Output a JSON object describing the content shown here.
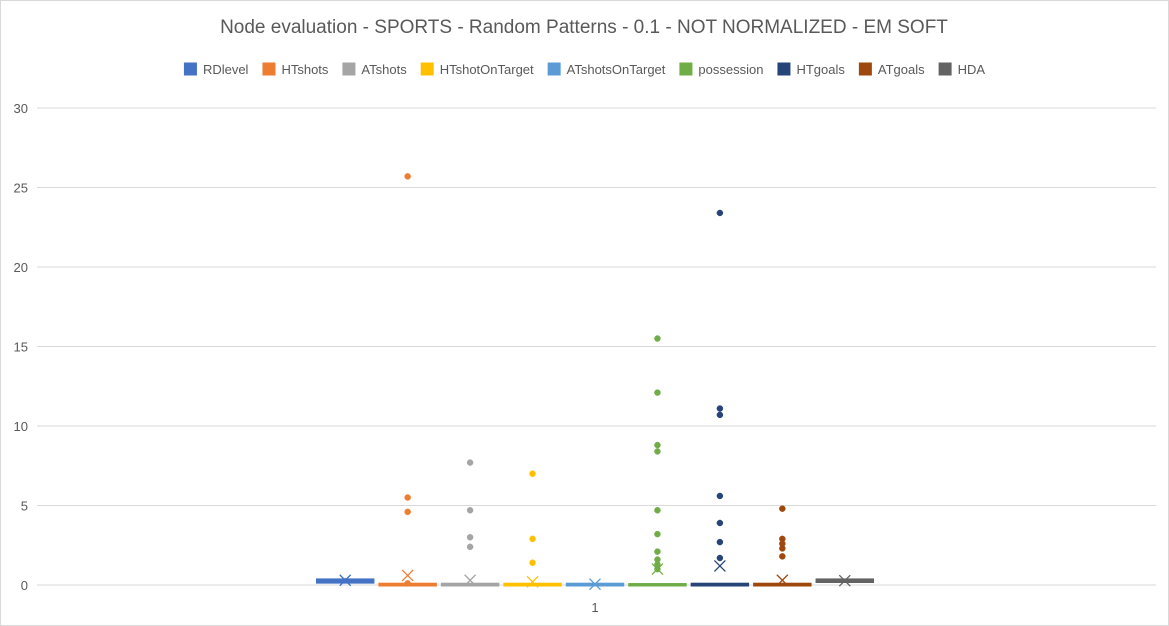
{
  "chart_data": {
    "type": "box",
    "title": "Node evaluation - SPORTS - Random Patterns - 0.1 - NOT NORMALIZED - EM SOFT",
    "xlabel": "",
    "ylabel": "",
    "categories": [
      "1"
    ],
    "ylim": [
      0,
      30
    ],
    "yticks": [
      0,
      5,
      10,
      15,
      20,
      25,
      30
    ],
    "grid": true,
    "legend_position": "top",
    "series": [
      {
        "name": "RDlevel",
        "color": "#4472C4",
        "q1": 0.18,
        "median": 0.25,
        "q3": 0.32,
        "whisker_low": 0.1,
        "whisker_high": 0.45,
        "mean": 0.3,
        "outliers": []
      },
      {
        "name": "HTshots",
        "color": "#ED7D31",
        "q1": 0.0,
        "median": 0.02,
        "q3": 0.05,
        "whisker_low": 0.0,
        "whisker_high": 0.1,
        "mean": 0.6,
        "outliers": [
          25.7,
          5.5,
          4.6,
          0.1
        ]
      },
      {
        "name": "ATshots",
        "color": "#A5A5A5",
        "q1": 0.0,
        "median": 0.02,
        "q3": 0.05,
        "whisker_low": 0.0,
        "whisker_high": 0.1,
        "mean": 0.3,
        "outliers": [
          7.7,
          4.7,
          3.0,
          2.4
        ]
      },
      {
        "name": "HTshotOnTarget",
        "color": "#FFC000",
        "q1": 0.0,
        "median": 0.02,
        "q3": 0.05,
        "whisker_low": 0.0,
        "whisker_high": 0.1,
        "mean": 0.2,
        "outliers": [
          7.0,
          2.9,
          1.4
        ]
      },
      {
        "name": "ATshotsOnTarget",
        "color": "#5B9BD5",
        "q1": 0.0,
        "median": 0.02,
        "q3": 0.05,
        "whisker_low": 0.0,
        "whisker_high": 0.1,
        "mean": 0.05,
        "outliers": []
      },
      {
        "name": "possession",
        "color": "#70AD47",
        "q1": 0.0,
        "median": 0.01,
        "q3": 0.03,
        "whisker_low": 0.0,
        "whisker_high": 0.05,
        "mean": 1.0,
        "outliers": [
          15.5,
          12.1,
          8.8,
          8.4,
          4.7,
          3.2,
          2.1,
          1.6,
          1.0,
          1.3
        ]
      },
      {
        "name": "HTgoals",
        "color": "#264478",
        "q1": 0.0,
        "median": 0.02,
        "q3": 0.05,
        "whisker_low": 0.0,
        "whisker_high": 0.1,
        "mean": 1.2,
        "outliers": [
          23.4,
          11.1,
          10.7,
          5.6,
          3.9,
          2.7,
          1.7
        ]
      },
      {
        "name": "ATgoals",
        "color": "#9E480E",
        "q1": 0.0,
        "median": 0.02,
        "q3": 0.05,
        "whisker_low": 0.0,
        "whisker_high": 0.1,
        "mean": 0.3,
        "outliers": [
          4.8,
          2.9,
          2.6,
          2.3,
          1.8
        ]
      },
      {
        "name": "HDA",
        "color": "#636363",
        "q1": 0.22,
        "median": 0.27,
        "q3": 0.32,
        "whisker_low": 0.2,
        "whisker_high": 0.35,
        "mean": 0.27,
        "outliers": []
      }
    ]
  }
}
